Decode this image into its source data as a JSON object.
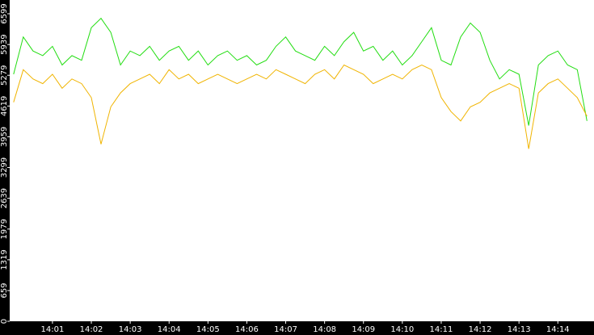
{
  "chart_data": {
    "type": "line",
    "x": [
      0,
      0.25,
      0.5,
      0.75,
      1,
      1.25,
      1.5,
      1.75,
      2,
      2.25,
      2.5,
      2.75,
      3,
      3.25,
      3.5,
      3.75,
      4,
      4.25,
      4.5,
      4.75,
      5,
      5.25,
      5.5,
      5.75,
      6,
      6.25,
      6.5,
      6.75,
      7,
      7.25,
      7.5,
      7.75,
      8,
      8.25,
      8.5,
      8.75,
      9,
      9.25,
      9.5,
      9.75,
      10,
      10.25,
      10.5,
      10.75,
      11,
      11.25,
      11.5,
      11.75,
      12,
      12.25,
      12.5,
      12.75,
      13,
      13.25,
      13.5,
      13.75,
      14,
      14.25,
      14.5,
      14.75
    ],
    "series": [
      {
        "color": "#22dd11",
        "values": [
          5300,
          6100,
          5800,
          5700,
          5900,
          5500,
          5700,
          5600,
          6300,
          6500,
          6200,
          5500,
          5800,
          5700,
          5900,
          5600,
          5800,
          5900,
          5600,
          5800,
          5500,
          5700,
          5800,
          5600,
          5700,
          5500,
          5600,
          5900,
          6100,
          5800,
          5700,
          5600,
          5900,
          5700,
          6000,
          6200,
          5800,
          5900,
          5600,
          5800,
          5500,
          5700,
          6000,
          6300,
          5600,
          5500,
          6100,
          6400,
          6200,
          5600,
          5200,
          5400,
          5300,
          4200,
          5500,
          5700,
          5800,
          5500,
          5400,
          4300
        ]
      },
      {
        "color": "#f0b400",
        "values": [
          4700,
          5400,
          5200,
          5100,
          5300,
          5000,
          5200,
          5100,
          4800,
          3800,
          4600,
          4900,
          5100,
          5200,
          5300,
          5100,
          5400,
          5200,
          5300,
          5100,
          5200,
          5300,
          5200,
          5100,
          5200,
          5300,
          5200,
          5400,
          5300,
          5200,
          5100,
          5300,
          5400,
          5200,
          5500,
          5400,
          5300,
          5100,
          5200,
          5300,
          5200,
          5400,
          5500,
          5400,
          4800,
          4500,
          4300,
          4600,
          4700,
          4900,
          5000,
          5100,
          5000,
          3700,
          4900,
          5100,
          5200,
          5000,
          4800,
          4400
        ]
      }
    ],
    "xlim": [
      -0.1,
      14.93
    ],
    "xticks": [
      {
        "value": 1,
        "label": "14:01"
      },
      {
        "value": 2,
        "label": "14:02"
      },
      {
        "value": 3,
        "label": "14:03"
      },
      {
        "value": 4,
        "label": "14:04"
      },
      {
        "value": 5,
        "label": "14:05"
      },
      {
        "value": 6,
        "label": "14:06"
      },
      {
        "value": 7,
        "label": "14:07"
      },
      {
        "value": 8,
        "label": "14:08"
      },
      {
        "value": 9,
        "label": "14:09"
      },
      {
        "value": 10,
        "label": "14:10"
      },
      {
        "value": 11,
        "label": "14:11"
      },
      {
        "value": 12,
        "label": "14:12"
      },
      {
        "value": 13,
        "label": "14:13"
      },
      {
        "value": 14,
        "label": "14:14"
      }
    ],
    "ylim": [
      0,
      6894
    ],
    "yticks": [
      0,
      659,
      1319,
      1979,
      2639,
      3299,
      3959,
      4619,
      5279,
      5939,
      6599
    ]
  }
}
